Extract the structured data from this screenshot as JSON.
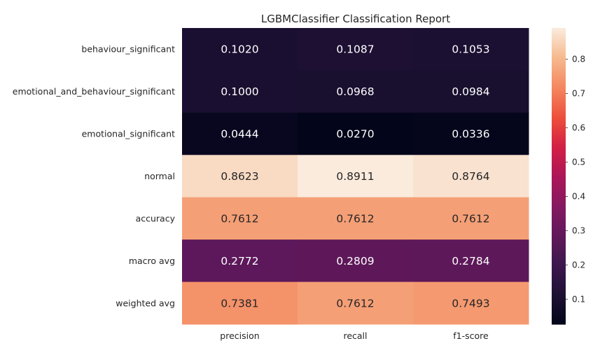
{
  "chart_data": {
    "type": "heatmap",
    "title": "LGBMClassifier Classification Report",
    "columns": [
      "precision",
      "recall",
      "f1-score"
    ],
    "rows": [
      "behaviour_significant",
      "emotional_and_behaviour_significant",
      "emotional_significant",
      "normal",
      "accuracy",
      "macro avg",
      "weighted avg"
    ],
    "values": [
      [
        0.102,
        0.1087,
        0.1053
      ],
      [
        0.1,
        0.0968,
        0.0984
      ],
      [
        0.0444,
        0.027,
        0.0336
      ],
      [
        0.8623,
        0.8911,
        0.8764
      ],
      [
        0.7612,
        0.7612,
        0.7612
      ],
      [
        0.2772,
        0.2809,
        0.2784
      ],
      [
        0.7381,
        0.7612,
        0.7493
      ]
    ],
    "labels": [
      [
        "0.1020",
        "0.1087",
        "0.1053"
      ],
      [
        "0.1000",
        "0.0968",
        "0.0984"
      ],
      [
        "0.0444",
        "0.0270",
        "0.0336"
      ],
      [
        "0.8623",
        "0.8911",
        "0.8764"
      ],
      [
        "0.7612",
        "0.7612",
        "0.7612"
      ],
      [
        "0.2772",
        "0.2809",
        "0.2784"
      ],
      [
        "0.7381",
        "0.7612",
        "0.7493"
      ]
    ],
    "colormap": "rocket",
    "vmin": 0.027,
    "vmax": 0.8911,
    "colorbar_ticks": [
      0.1,
      0.2,
      0.3,
      0.4,
      0.5,
      0.6,
      0.7,
      0.8
    ],
    "colorbar_tick_labels": [
      "0.1",
      "0.2",
      "0.3",
      "0.4",
      "0.5",
      "0.6",
      "0.7",
      "0.8"
    ],
    "grid": false
  }
}
